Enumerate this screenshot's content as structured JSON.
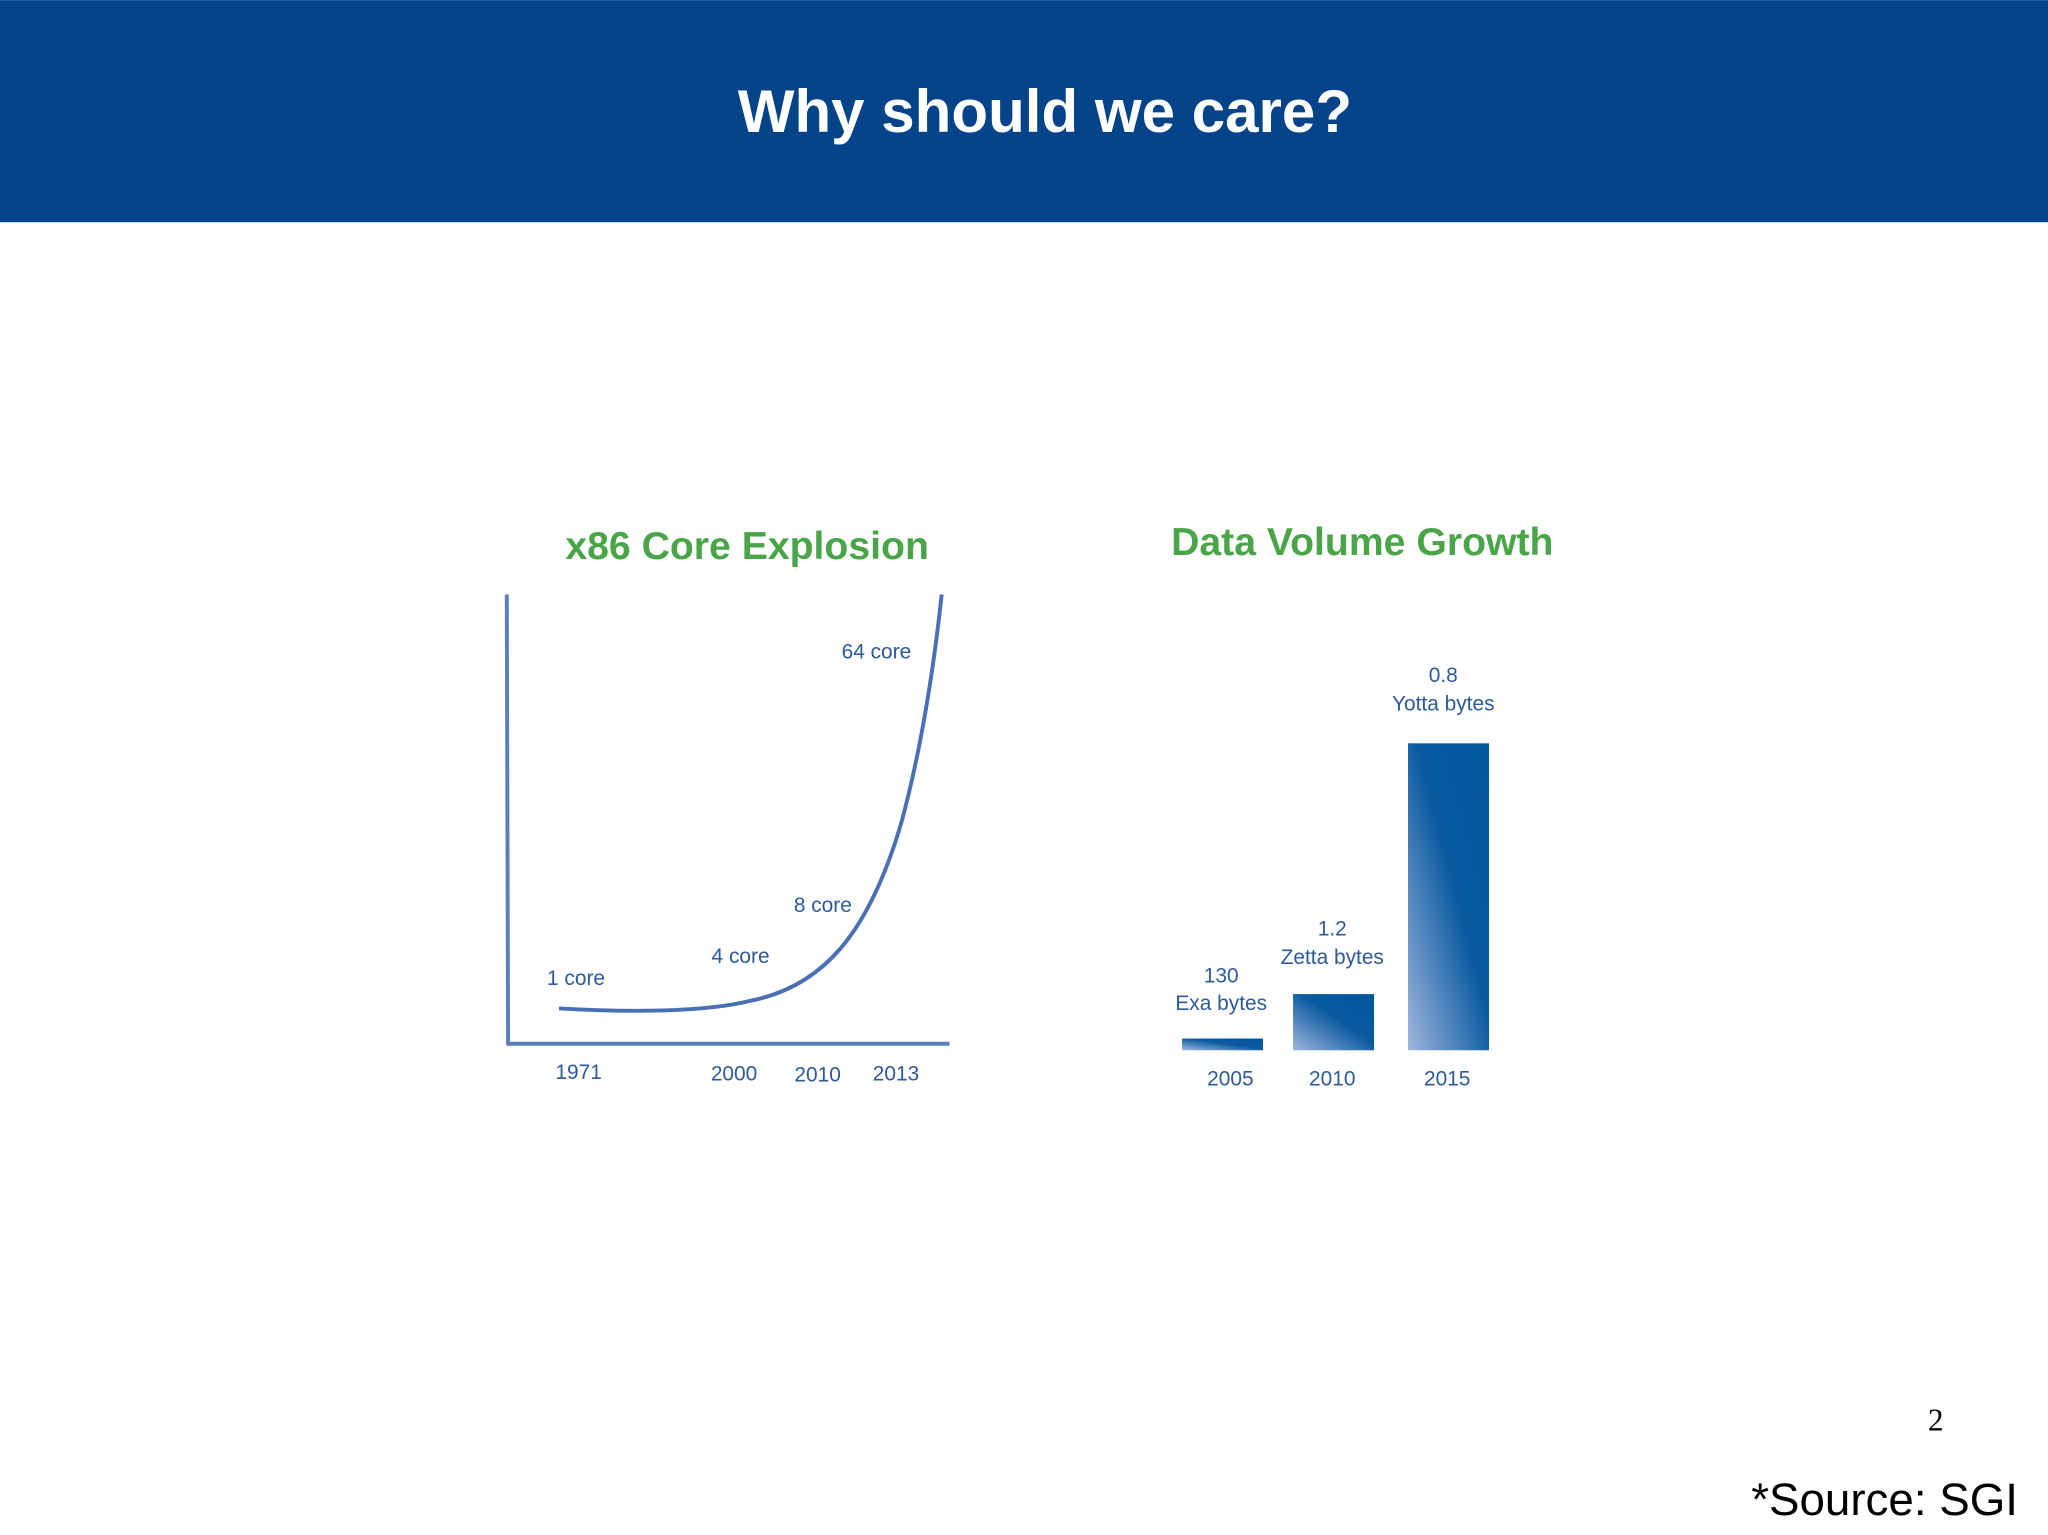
{
  "header": {
    "title": "Why should we care?"
  },
  "figures": [
    {
      "title": "x86 Core Explosion",
      "annotations": [
        "1 core",
        "4 core",
        "8 core",
        "64 core"
      ],
      "x_labels": [
        "1971",
        "2000",
        "2010",
        "2013"
      ]
    },
    {
      "title": "Data Volume Growth",
      "bars": [
        {
          "amount": "130",
          "unit": "Exa bytes",
          "year": "2005"
        },
        {
          "amount": "1.2",
          "unit": "Zetta bytes",
          "year": "2010"
        },
        {
          "amount": "0.8",
          "unit": "Yotta bytes",
          "year": "2015"
        }
      ]
    }
  ],
  "page_number": "2",
  "source": "*Source: SGI"
}
